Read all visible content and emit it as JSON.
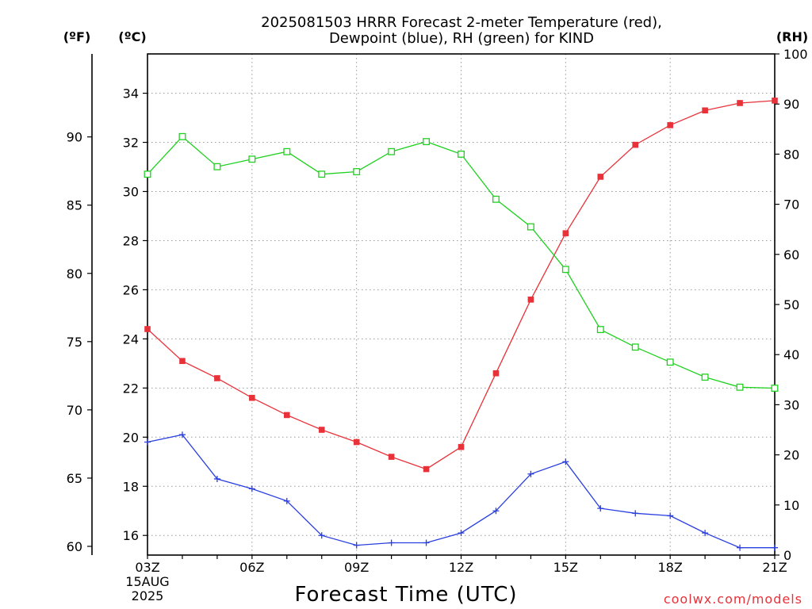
{
  "chart_data": {
    "type": "line",
    "title_lines": [
      "2025081503 HRRR Forecast 2-meter Temperature (red),",
      "Dewpoint (blue), RH (green) for KIND"
    ],
    "xlabel": "Forecast Time (UTC)",
    "unit_f": "(ºF)",
    "unit_c": "(ºC)",
    "unit_rh": "(RH)",
    "credit": "coolwx.com/models",
    "x": [
      "03Z",
      "04Z",
      "05Z",
      "06Z",
      "07Z",
      "08Z",
      "09Z",
      "10Z",
      "11Z",
      "12Z",
      "13Z",
      "14Z",
      "15Z",
      "16Z",
      "17Z",
      "18Z",
      "19Z",
      "20Z",
      "21Z"
    ],
    "x_tick_labels": [
      "03Z",
      "06Z",
      "09Z",
      "12Z",
      "15Z",
      "18Z",
      "21Z"
    ],
    "x_date_lines": [
      "15AUG",
      "2025"
    ],
    "celsius_axis": {
      "range": [
        15.2,
        35.6
      ],
      "ticks": [
        16,
        18,
        20,
        22,
        24,
        26,
        28,
        30,
        32,
        34
      ]
    },
    "fahrenheit_axis": {
      "ticks": [
        60,
        65,
        70,
        75,
        80,
        85,
        90
      ]
    },
    "rh_axis": {
      "range": [
        0,
        100
      ],
      "ticks": [
        0,
        10,
        20,
        30,
        40,
        50,
        60,
        70,
        80,
        90,
        100
      ]
    },
    "grid": true,
    "series": [
      {
        "name": "Temperature",
        "color": "#e8323a",
        "marker": "filled-square",
        "axis": "celsius",
        "values": [
          24.4,
          23.1,
          22.4,
          21.6,
          20.9,
          20.3,
          19.8,
          19.2,
          18.7,
          19.6,
          22.6,
          25.6,
          28.3,
          30.6,
          31.9,
          32.7,
          33.3,
          33.6,
          33.7
        ]
      },
      {
        "name": "Dewpoint",
        "color": "#2a3fe0",
        "marker": "plus",
        "axis": "celsius",
        "values": [
          19.8,
          20.1,
          18.3,
          17.9,
          17.4,
          16.0,
          15.6,
          15.7,
          15.7,
          16.1,
          17.0,
          18.5,
          19.0,
          17.1,
          16.9,
          16.8,
          16.1,
          15.5,
          15.5
        ]
      },
      {
        "name": "RH",
        "color": "#1fd11f",
        "marker": "open-square",
        "axis": "rh",
        "values": [
          76,
          83.5,
          77.5,
          79,
          80.5,
          76,
          76.5,
          80.5,
          82.5,
          80,
          71,
          65.5,
          57,
          45,
          41.5,
          38.5,
          35.5,
          33.5,
          33.3
        ]
      }
    ]
  }
}
